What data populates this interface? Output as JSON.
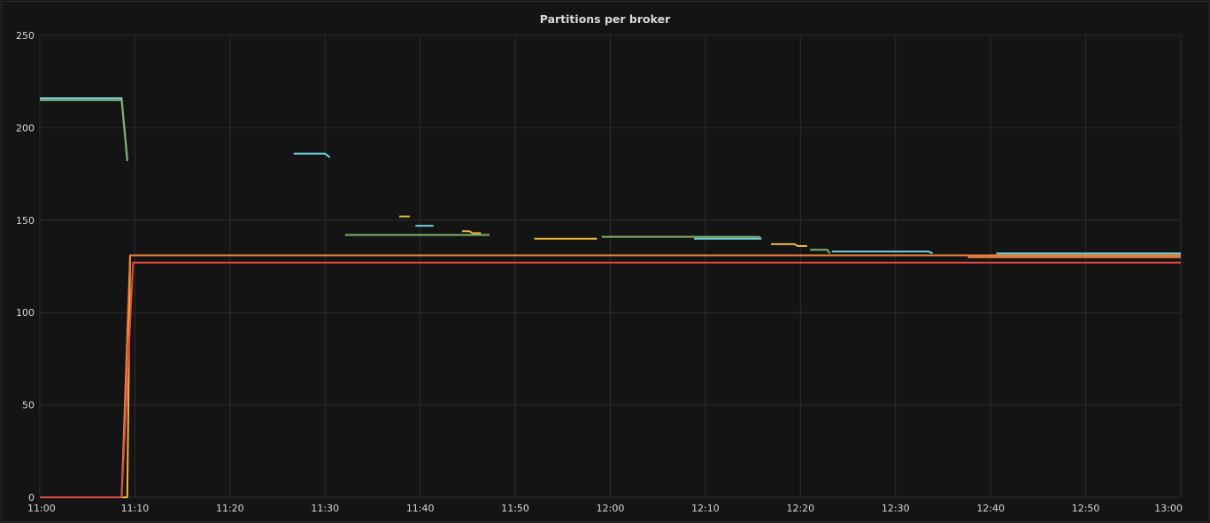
{
  "panel": {
    "title": "Partitions per broker"
  },
  "chart_data": {
    "type": "line",
    "title": "Partitions per broker",
    "xlabel": "",
    "ylabel": "",
    "xlim": [
      "11:00",
      "13:00"
    ],
    "ylim": [
      0,
      250
    ],
    "x_ticks": [
      "11:00",
      "11:10",
      "11:20",
      "11:30",
      "11:40",
      "11:50",
      "12:00",
      "12:10",
      "12:20",
      "12:30",
      "12:40",
      "12:50",
      "13:00"
    ],
    "y_ticks": [
      0,
      50,
      100,
      150,
      200,
      250
    ],
    "grid": true,
    "legend": "none",
    "series": [
      {
        "color": "#6ed0e0",
        "segments": [
          [
            [
              "11:00",
              216
            ],
            [
              "11:08.6",
              216
            ],
            [
              "11:09.2",
              183
            ]
          ],
          [
            [
              "11:26.7",
              186
            ],
            [
              "11:30",
              186
            ],
            [
              "11:30.5",
              184
            ]
          ],
          [
            [
              "11:39.5",
              147
            ],
            [
              "11:41.4",
              147
            ]
          ],
          [
            [
              "12:08.8",
              140
            ],
            [
              "12:15.9",
              140
            ]
          ],
          [
            [
              "12:23.3",
              133
            ],
            [
              "12:33.5",
              133
            ],
            [
              "12:33.9",
              132
            ]
          ],
          [
            [
              "12:40.6",
              132
            ],
            [
              "13:00",
              132
            ]
          ]
        ]
      },
      {
        "color": "#7eb26d",
        "segments": [
          [
            [
              "11:00",
              215
            ],
            [
              "11:08.6",
              215
            ],
            [
              "11:09.2",
              182
            ]
          ],
          [
            [
              "11:32.1",
              142
            ],
            [
              "11:47.3",
              142
            ]
          ],
          [
            [
              "11:59.1",
              141
            ],
            [
              "12:15.6",
              141
            ],
            [
              "12:15.9",
              140
            ]
          ],
          [
            [
              "12:21",
              134
            ],
            [
              "12:22.8",
              134
            ],
            [
              "12:23.1",
              132
            ]
          ]
        ]
      },
      {
        "color": "#eab839",
        "segments": [
          [
            [
              "11:00",
              0
            ],
            [
              "11:09.2",
              0
            ],
            [
              "11:09.5",
              131
            ],
            [
              "13:00",
              131
            ]
          ],
          [
            [
              "11:37.8",
              152
            ],
            [
              "11:38.9",
              152
            ]
          ],
          [
            [
              "11:44.4",
              144
            ],
            [
              "11:45.2",
              144
            ],
            [
              "11:45.5",
              143
            ],
            [
              "11:46.4",
              143
            ]
          ],
          [
            [
              "11:52",
              140
            ],
            [
              "11:58.6",
              140
            ]
          ],
          [
            [
              "12:16.9",
              137
            ],
            [
              "12:19.4",
              137
            ],
            [
              "12:19.7",
              136
            ],
            [
              "12:20.7",
              136
            ]
          ]
        ]
      },
      {
        "color": "#ef843c",
        "segments": [
          [
            [
              "11:00",
              0
            ],
            [
              "11:08.6",
              0
            ],
            [
              "11:09.5",
              131
            ],
            [
              "13:00",
              131
            ]
          ],
          [
            [
              "12:37.6",
              130
            ],
            [
              "13:00",
              130
            ]
          ]
        ]
      },
      {
        "color": "#e24d42",
        "segments": [
          [
            [
              "11:00",
              0
            ],
            [
              "11:08.6",
              0
            ],
            [
              "11:09.8",
              127
            ],
            [
              "13:00",
              127
            ]
          ]
        ]
      }
    ]
  }
}
